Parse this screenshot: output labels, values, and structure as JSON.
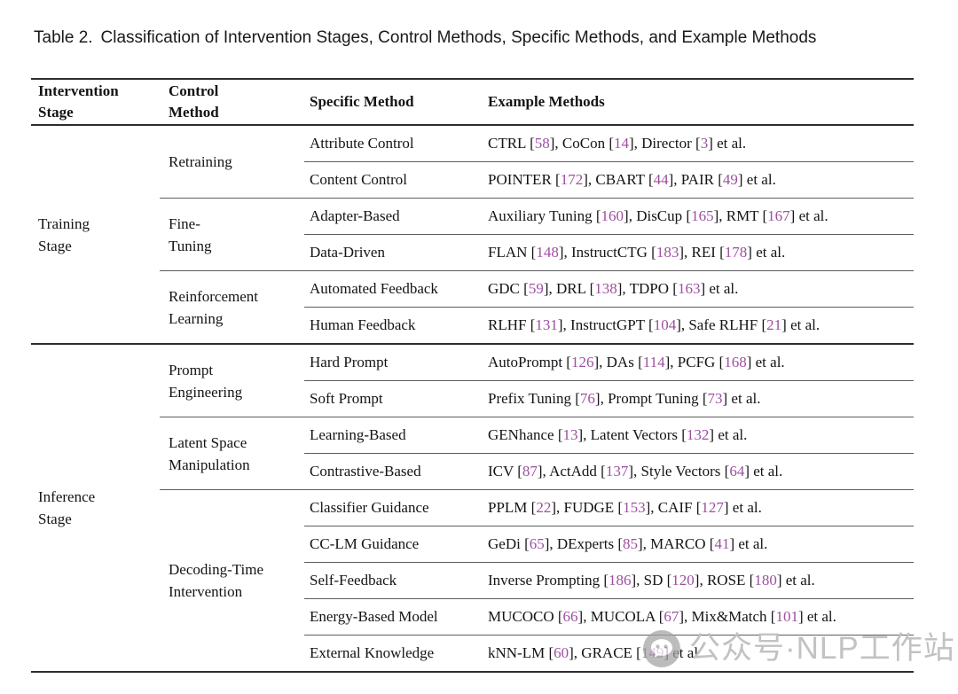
{
  "caption": {
    "tag": "Table 2.",
    "text": "Classification of Intervention Stages, Control Methods, Specific Methods, and Example Methods"
  },
  "table": {
    "headers": {
      "stage": "Intervention\nStage",
      "control": "Control\nMethod",
      "specific": "Specific Method",
      "examples": "Example Methods"
    },
    "stages": [
      {
        "label": "Training\nStage"
      },
      {
        "label": "Inference\nStage"
      }
    ],
    "controls": [
      {
        "label": "Retraining"
      },
      {
        "label": "Fine-\nTuning"
      },
      {
        "label": "Reinforcement\nLearning"
      },
      {
        "label": "Prompt\nEngineering"
      },
      {
        "label": "Latent Space\nManipulation"
      },
      {
        "label": "Decoding-Time\nIntervention"
      }
    ],
    "rows": [
      {
        "specific": "Attribute Control",
        "examples": "CTRL [58], CoCon [14], Director [3] et al."
      },
      {
        "specific": "Content Control",
        "examples": "POINTER [172], CBART [44], PAIR [49] et al."
      },
      {
        "specific": "Adapter-Based",
        "examples": "Auxiliary Tuning [160], DisCup [165], RMT [167] et al."
      },
      {
        "specific": "Data-Driven",
        "examples": "FLAN [148], InstructCTG [183], REI [178] et al."
      },
      {
        "specific": "Automated Feedback",
        "examples": "GDC [59], DRL [138], TDPO [163] et al."
      },
      {
        "specific": "Human Feedback",
        "examples": "RLHF [131], InstructGPT [104], Safe RLHF [21] et al."
      },
      {
        "specific": "Hard Prompt",
        "examples": "AutoPrompt [126], DAs [114], PCFG [168] et al."
      },
      {
        "specific": "Soft Prompt",
        "examples": "Prefix Tuning [76], Prompt Tuning [73] et al."
      },
      {
        "specific": "Learning-Based",
        "examples": "GENhance [13], Latent Vectors [132] et al."
      },
      {
        "specific": "Contrastive-Based",
        "examples": "ICV [87], ActAdd [137], Style Vectors [64] et al."
      },
      {
        "specific": "Classifier Guidance",
        "examples": "PPLM [22], FUDGE [153], CAIF [127] et al."
      },
      {
        "specific": "CC-LM Guidance",
        "examples": "GeDi [65], DExperts [85], MARCO [41] et al."
      },
      {
        "specific": "Self-Feedback",
        "examples": "Inverse Prompting [186], SD [120], ROSE [180] et al."
      },
      {
        "specific": "Energy-Based Model",
        "examples": "MUCOCO [66], MUCOLA [67], Mix&Match [101] et al."
      },
      {
        "specific": "External Knowledge",
        "examples": "kNN-LM [60], GRACE [149] et al."
      }
    ]
  },
  "watermark": {
    "text": "公众号·NLP工作站",
    "icon": "wechat-icon"
  },
  "colors": {
    "citation": "#9e4fa0",
    "watermark": "#c2c2c2",
    "rule_dark": "#2d2d2d",
    "rule_light": "#5c5c5c",
    "text": "#141414"
  }
}
